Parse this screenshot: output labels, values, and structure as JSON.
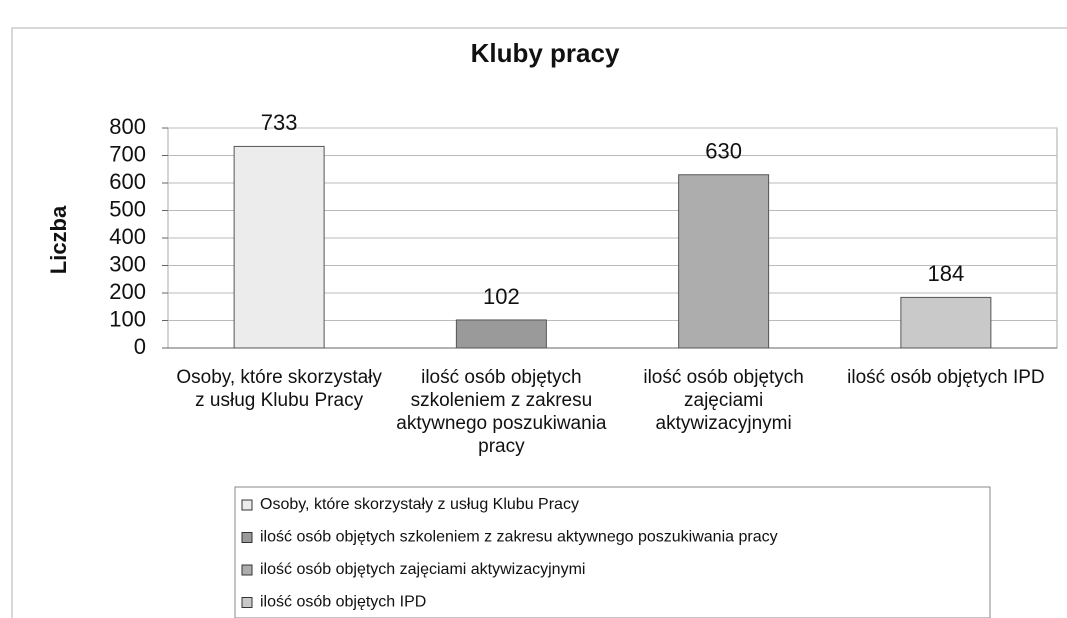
{
  "chart_data": {
    "type": "bar",
    "title": "Kluby pracy",
    "y_label": "Liczba",
    "categories": [
      "Osoby, które skorzystały z usług Klubu Pracy",
      "ilość osób objętych szkoleniem z zakresu aktywnego poszukiwania pracy",
      "ilość osób objętych zajęciami aktywizacyjnymi",
      "ilość osób objętych IPD"
    ],
    "values": [
      733,
      102,
      630,
      184
    ],
    "colors": [
      "#ececec",
      "#9a9a9a",
      "#adadad",
      "#c9c9c9"
    ],
    "ylim": [
      0,
      800
    ],
    "yticks": [
      0,
      100,
      200,
      300,
      400,
      500,
      600,
      700,
      800
    ],
    "grid": true,
    "legend": "bottom"
  }
}
